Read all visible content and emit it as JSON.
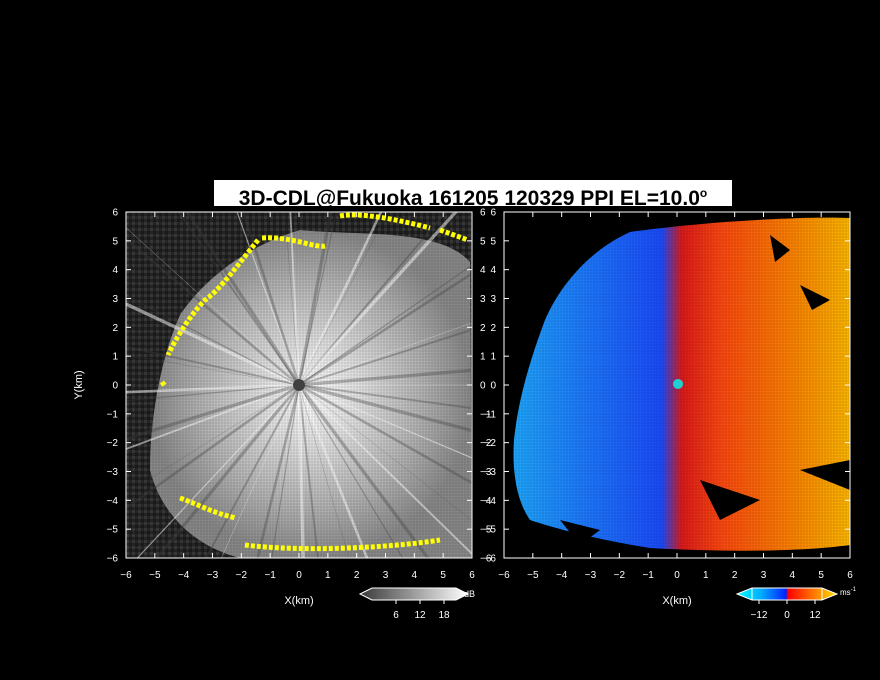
{
  "title": {
    "main": "3D-CDL@Fukuoka 161205 120329 PPI EL=10.0",
    "degree_mark": "o"
  },
  "colors": {
    "background": "#000000",
    "title_bg": "#ffffff",
    "axes": "#ffffff",
    "snr_edge": "#ffff00",
    "vel_negative": "#1e6bff",
    "vel_positive": "#ff4a10"
  },
  "chart_data": [
    {
      "type": "heatmap",
      "panel": "left",
      "quantity": "SNR",
      "xlabel": "X(km)",
      "ylabel": "Y(km)",
      "xlim": [
        -6,
        6
      ],
      "ylim": [
        -6,
        6
      ],
      "xticks": [
        -6,
        -5,
        -4,
        -3,
        -2,
        -1,
        0,
        1,
        2,
        3,
        4,
        5,
        6
      ],
      "yticks": [
        -6,
        -5,
        -4,
        -3,
        -2,
        -1,
        0,
        1,
        2,
        3,
        4,
        5,
        6
      ],
      "colorbar": {
        "unit": "dB",
        "ticks": [
          6,
          12,
          18
        ],
        "colormap": "gray-to-white"
      },
      "features": {
        "radar_center": [
          0,
          0
        ],
        "echo_region": "grey/white radial field around radar, yellow edge at boundary",
        "clear_sky": "dark grey noise outside boundary"
      }
    },
    {
      "type": "heatmap",
      "panel": "right",
      "quantity": "Doppler velocity",
      "xlabel": "X(km)",
      "xlim": [
        -6,
        6
      ],
      "ylim": [
        -6,
        6
      ],
      "xticks": [
        -6,
        -5,
        -4,
        -3,
        -2,
        -1,
        0,
        1,
        2,
        3,
        4,
        5,
        6
      ],
      "yticks": [
        -6,
        -5,
        -4,
        -3,
        -2,
        -1,
        0,
        1,
        2,
        3,
        4,
        5,
        6
      ],
      "colorbar": {
        "unit": "ms",
        "unit_exponent": "-1",
        "ticks": [
          -12,
          0,
          12
        ],
        "colormap": "cyan-blue-red-orange"
      },
      "features": {
        "negative_region": "west half (blue)",
        "positive_region": "east half (red/orange)",
        "zero_line": "roughly along x = 0"
      }
    }
  ]
}
